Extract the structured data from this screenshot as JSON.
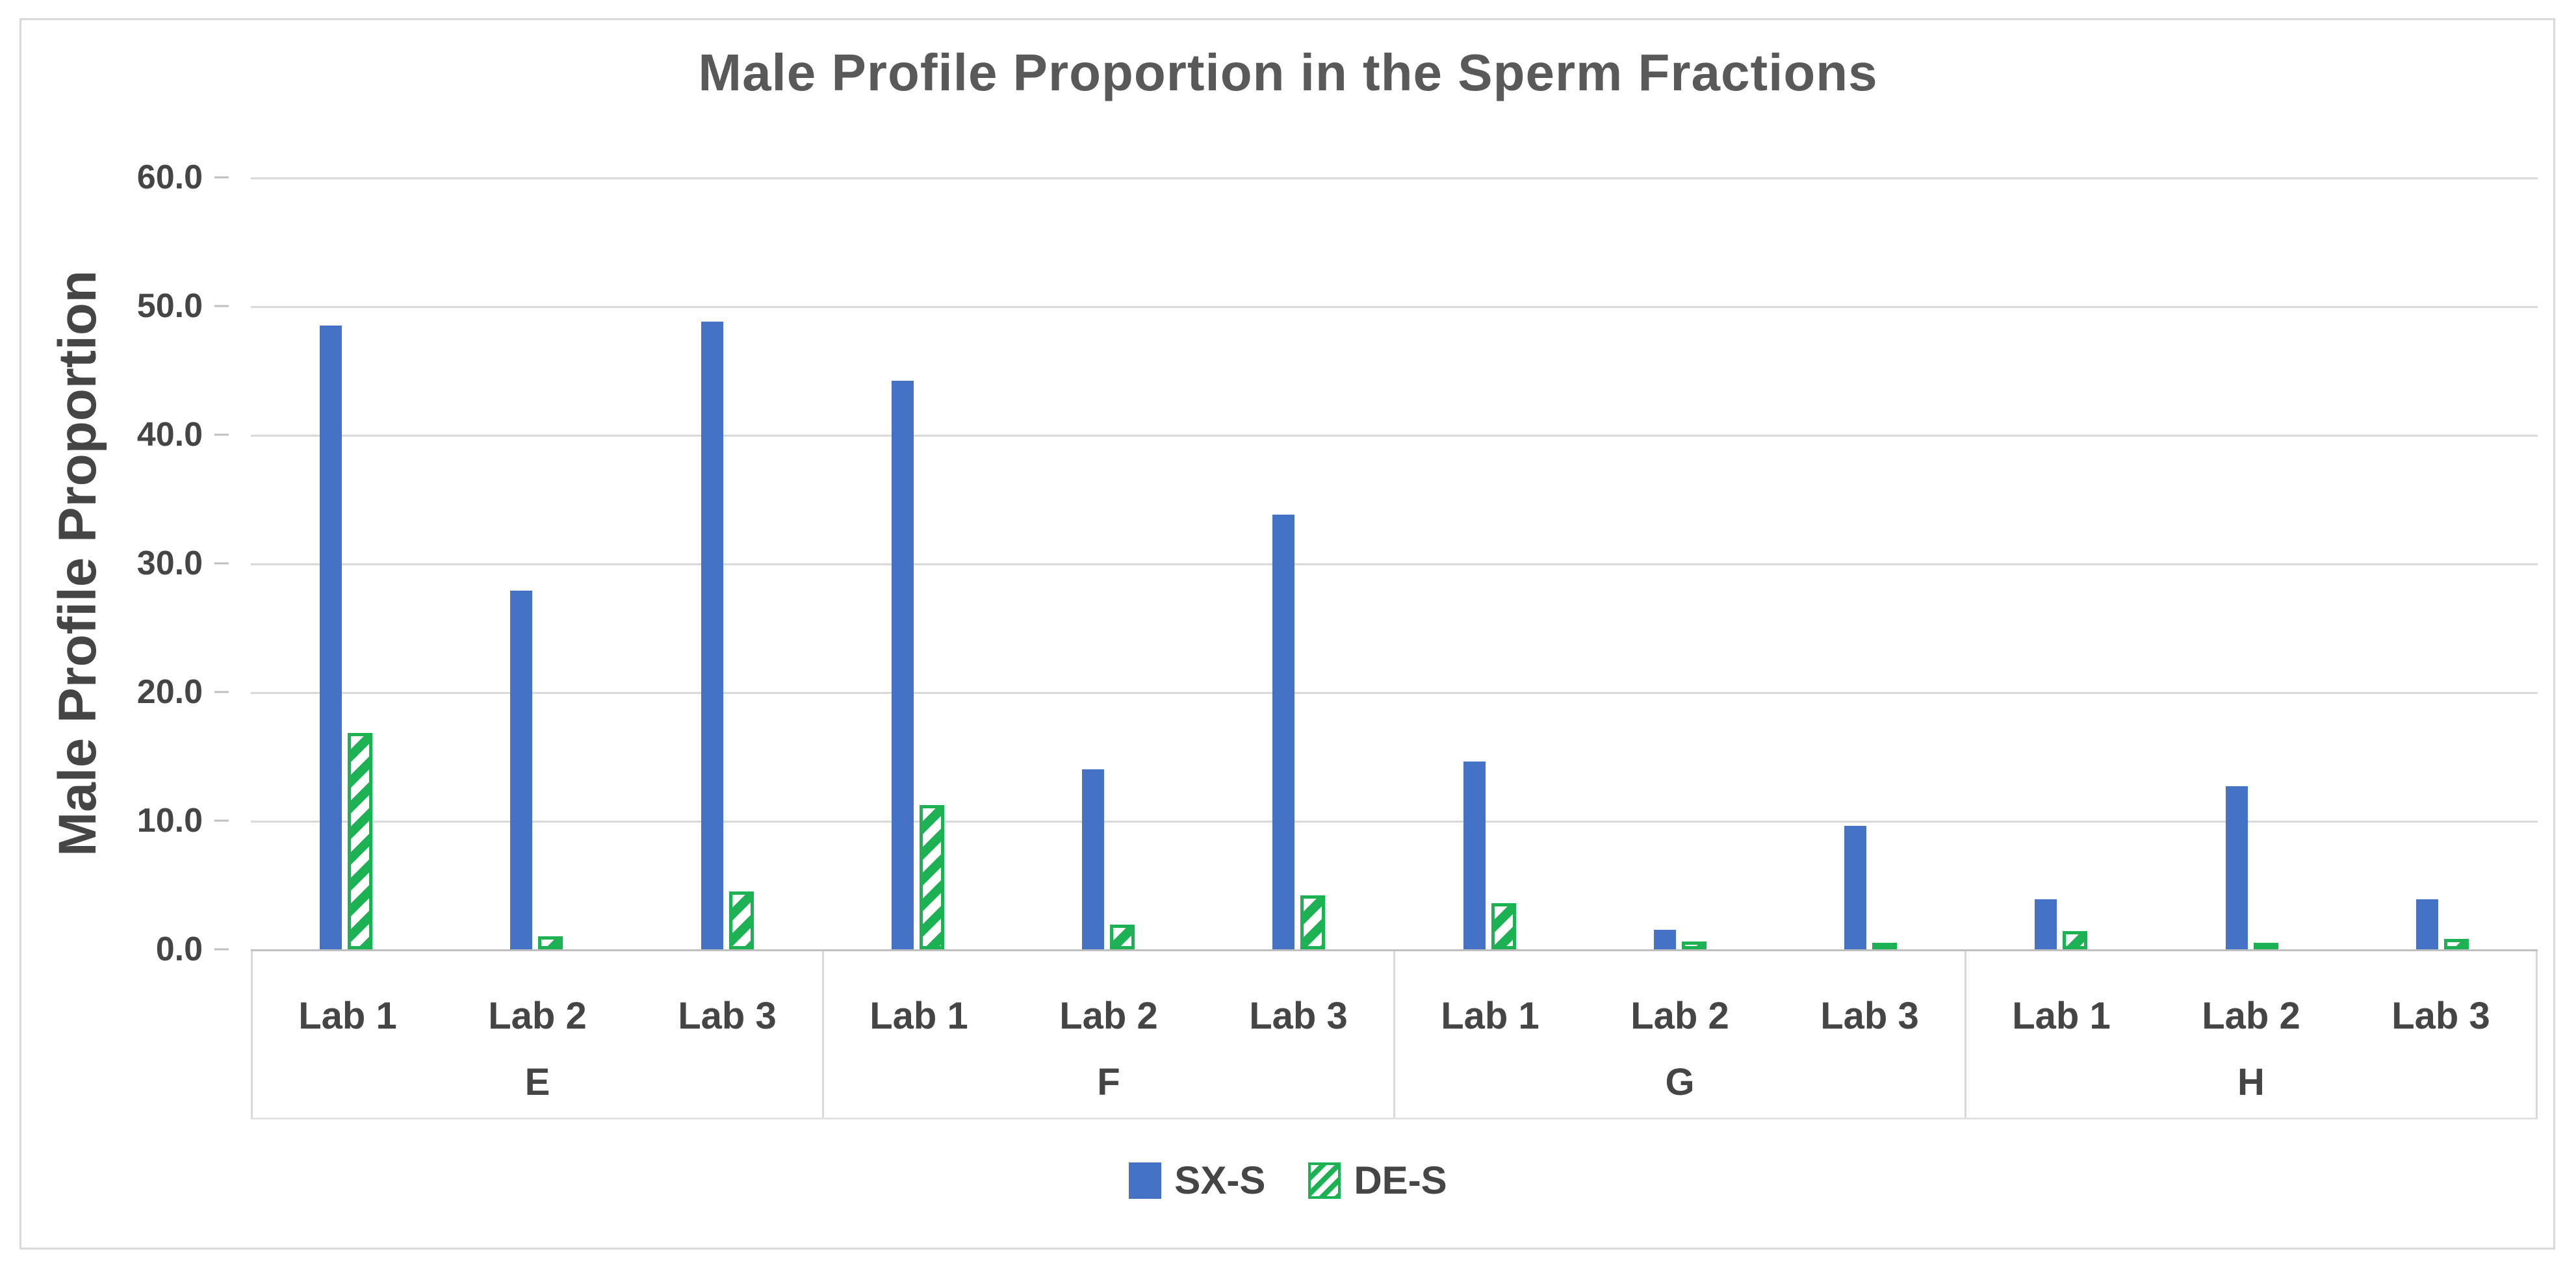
{
  "title": "Male Profile Proportion in the Sperm Fractions",
  "y_axis": {
    "title": "Male Profile Proportion",
    "tick_labels": [
      "60.0",
      "50.0",
      "40.0",
      "30.0",
      "20.0",
      "10.0",
      "0.0"
    ]
  },
  "legend": [
    {
      "label": "SX-S",
      "pattern": "solid",
      "color": "#4472C4"
    },
    {
      "label": "DE-S",
      "pattern": "diagonal-hatch",
      "color": "#1CB152"
    }
  ],
  "colors": {
    "sx_s_blue": "#4472C4",
    "de_s_green": "#1CB152",
    "gridline": "#D9D9D9",
    "axis_line": "#BFBFBF",
    "text": "#454545",
    "title_text": "#595959"
  },
  "chart_data": {
    "type": "bar",
    "title": "Male Profile Proportion in the Sperm Fractions",
    "xlabel": "",
    "ylabel": "Male Profile Proportion",
    "ylim": [
      0,
      60
    ],
    "ytick_step": 10,
    "grid": true,
    "legend_position": "bottom",
    "groups": [
      "E",
      "F",
      "G",
      "H"
    ],
    "categories_per_group": [
      "Lab 1",
      "Lab 2",
      "Lab 3"
    ],
    "categories": [
      "E Lab 1",
      "E Lab 2",
      "E Lab 3",
      "F Lab 1",
      "F Lab 2",
      "F Lab 3",
      "G Lab 1",
      "G Lab 2",
      "G Lab 3",
      "H Lab 1",
      "H Lab 2",
      "H Lab 3"
    ],
    "series": [
      {
        "name": "SX-S",
        "pattern": "solid",
        "color": "#4472C4",
        "values": [
          48.5,
          27.9,
          48.8,
          44.2,
          14.0,
          33.8,
          14.6,
          1.5,
          9.6,
          3.9,
          12.7,
          3.9
        ]
      },
      {
        "name": "DE-S",
        "pattern": "diagonal-hatch",
        "color": "#1CB152",
        "values": [
          16.8,
          1.0,
          4.5,
          11.2,
          1.9,
          4.2,
          3.6,
          0.6,
          0.5,
          1.4,
          0.5,
          0.8
        ]
      }
    ]
  }
}
